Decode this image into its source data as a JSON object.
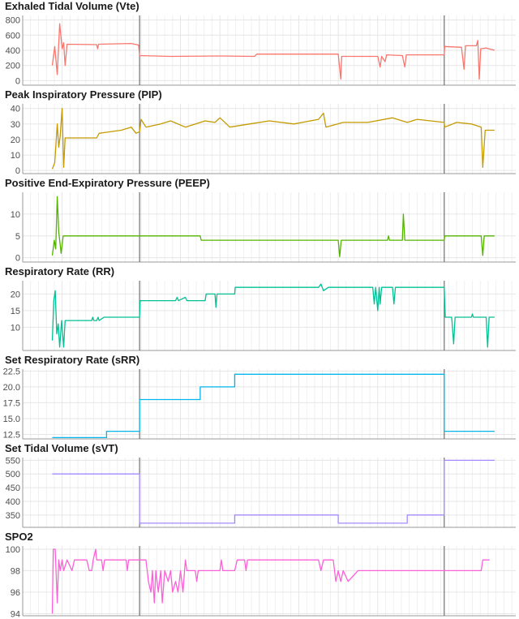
{
  "chart_data": {
    "type": "line",
    "x_range": [
      0,
      100
    ],
    "event_markers": [
      23.7,
      85.5
    ],
    "grid": true,
    "panels": [
      {
        "title": "Exhaled Tidal Volume (Vte)",
        "color": "#f8766d",
        "ylim": [
          -60,
          860
        ],
        "yticks": [
          0,
          200,
          400,
          600,
          800
        ],
        "ytick_labels": [
          "0",
          "200",
          "400",
          "600",
          "800"
        ],
        "points": [
          [
            6,
            200
          ],
          [
            6.5,
            450
          ],
          [
            7,
            80
          ],
          [
            7.5,
            750
          ],
          [
            8,
            420
          ],
          [
            8.3,
            500
          ],
          [
            8.6,
            200
          ],
          [
            9,
            480
          ],
          [
            15,
            475
          ],
          [
            15.2,
            420
          ],
          [
            15.4,
            480
          ],
          [
            22,
            490
          ],
          [
            23.5,
            470
          ],
          [
            23.7,
            330
          ],
          [
            30,
            320
          ],
          [
            40,
            325
          ],
          [
            47,
            320
          ],
          [
            47.5,
            350
          ],
          [
            64,
            350
          ],
          [
            64.5,
            20
          ],
          [
            64.7,
            320
          ],
          [
            72,
            320
          ],
          [
            72.5,
            180
          ],
          [
            72.8,
            320
          ],
          [
            73.5,
            250
          ],
          [
            73.8,
            340
          ],
          [
            77,
            330
          ],
          [
            77.5,
            180
          ],
          [
            77.8,
            340
          ],
          [
            85.5,
            340
          ],
          [
            85.6,
            450
          ],
          [
            89,
            440
          ],
          [
            89.5,
            150
          ],
          [
            89.8,
            460
          ],
          [
            92,
            460
          ],
          [
            92.3,
            530
          ],
          [
            92.6,
            20
          ],
          [
            92.9,
            420
          ],
          [
            94,
            430
          ],
          [
            95.7,
            400
          ]
        ]
      },
      {
        "title": "Peak Inspiratory Pressure (PIP)",
        "color": "#c49a00",
        "ylim": [
          -2,
          43
        ],
        "yticks": [
          0,
          10,
          20,
          30,
          40
        ],
        "ytick_labels": [
          "0",
          "10",
          "20",
          "30",
          "40"
        ],
        "points": [
          [
            6,
            1
          ],
          [
            6.5,
            5
          ],
          [
            7,
            30
          ],
          [
            7.3,
            15
          ],
          [
            7.6,
            22
          ],
          [
            8,
            40
          ],
          [
            8.3,
            2
          ],
          [
            8.6,
            21
          ],
          [
            15,
            21
          ],
          [
            15.5,
            24
          ],
          [
            20,
            26
          ],
          [
            22,
            28
          ],
          [
            23,
            24
          ],
          [
            23.7,
            25
          ],
          [
            24,
            33
          ],
          [
            25,
            28
          ],
          [
            28,
            30
          ],
          [
            30,
            32
          ],
          [
            33,
            28
          ],
          [
            37,
            32
          ],
          [
            39,
            31
          ],
          [
            40,
            34
          ],
          [
            42,
            28
          ],
          [
            46,
            30
          ],
          [
            50,
            32
          ],
          [
            55,
            30
          ],
          [
            60,
            33
          ],
          [
            61,
            37
          ],
          [
            61.5,
            28
          ],
          [
            65,
            31
          ],
          [
            70,
            31
          ],
          [
            75,
            34
          ],
          [
            78,
            31
          ],
          [
            80,
            33
          ],
          [
            85.5,
            31
          ],
          [
            85.6,
            28
          ],
          [
            88,
            31
          ],
          [
            91,
            30
          ],
          [
            93,
            28
          ],
          [
            93.3,
            2
          ],
          [
            93.8,
            26
          ],
          [
            95.7,
            26
          ]
        ]
      },
      {
        "title": "Positive End-Expiratory Pressure (PEEP)",
        "color": "#53b400",
        "ylim": [
          -1,
          15
        ],
        "yticks": [
          0,
          5,
          10
        ],
        "ytick_labels": [
          "0",
          "5",
          "10"
        ],
        "points": [
          [
            6,
            0.5
          ],
          [
            6.4,
            4
          ],
          [
            6.7,
            2
          ],
          [
            7,
            14
          ],
          [
            7.3,
            6
          ],
          [
            7.8,
            1
          ],
          [
            8.2,
            5
          ],
          [
            23.7,
            5
          ],
          [
            36,
            5
          ],
          [
            36.2,
            4
          ],
          [
            64,
            4
          ],
          [
            64.3,
            0.2
          ],
          [
            64.6,
            4
          ],
          [
            74,
            4
          ],
          [
            74.2,
            5
          ],
          [
            74.4,
            4
          ],
          [
            77,
            4
          ],
          [
            77.2,
            10
          ],
          [
            77.5,
            4
          ],
          [
            85.5,
            4
          ],
          [
            85.6,
            5
          ],
          [
            93,
            5
          ],
          [
            93.3,
            0.5
          ],
          [
            93.6,
            5
          ],
          [
            95.7,
            5
          ]
        ]
      },
      {
        "title": "Respiratory Rate (RR)",
        "color": "#00c094",
        "ylim": [
          3,
          24
        ],
        "yticks": [
          10,
          15,
          20
        ],
        "ytick_labels": [
          "10",
          "15",
          "20"
        ],
        "points": [
          [
            6,
            6
          ],
          [
            6.3,
            18
          ],
          [
            6.6,
            21
          ],
          [
            6.9,
            8
          ],
          [
            7.2,
            11
          ],
          [
            7.5,
            4
          ],
          [
            7.9,
            12
          ],
          [
            8.3,
            4
          ],
          [
            8.6,
            12
          ],
          [
            14,
            12
          ],
          [
            14.2,
            13
          ],
          [
            14.4,
            12
          ],
          [
            15,
            12
          ],
          [
            15.3,
            13
          ],
          [
            15.5,
            12
          ],
          [
            16.5,
            13
          ],
          [
            23.7,
            13
          ],
          [
            23.8,
            18
          ],
          [
            31,
            18
          ],
          [
            31.3,
            19
          ],
          [
            31.6,
            18
          ],
          [
            33,
            19
          ],
          [
            33.3,
            18
          ],
          [
            37,
            18
          ],
          [
            37.2,
            20
          ],
          [
            39,
            20
          ],
          [
            39.2,
            16
          ],
          [
            39.4,
            20
          ],
          [
            43,
            20
          ],
          [
            43.1,
            22
          ],
          [
            60,
            22
          ],
          [
            60.5,
            23
          ],
          [
            61,
            21
          ],
          [
            62,
            22
          ],
          [
            71,
            22
          ],
          [
            71.3,
            17
          ],
          [
            71.6,
            22
          ],
          [
            72,
            15
          ],
          [
            72.3,
            22
          ],
          [
            72.5,
            17
          ],
          [
            72.8,
            22
          ],
          [
            75,
            22
          ],
          [
            75.3,
            17
          ],
          [
            75.6,
            22
          ],
          [
            85.5,
            22
          ],
          [
            85.7,
            13
          ],
          [
            87,
            13
          ],
          [
            87.4,
            5
          ],
          [
            87.7,
            13
          ],
          [
            91,
            13
          ],
          [
            91.2,
            14
          ],
          [
            91.4,
            13
          ],
          [
            94,
            13
          ],
          [
            94.3,
            4
          ],
          [
            94.6,
            13
          ],
          [
            95.7,
            13
          ]
        ]
      },
      {
        "title": "Set Respiratory Rate (sRR)",
        "color": "#00b6eb",
        "ylim": [
          11.8,
          22.8
        ],
        "yticks": [
          12.5,
          15,
          17.5,
          20,
          22.5
        ],
        "ytick_labels": [
          "12.5",
          "15.0",
          "17.5",
          "20.0",
          "22.5"
        ],
        "points": [
          [
            6,
            12
          ],
          [
            17,
            12
          ],
          [
            17,
            13
          ],
          [
            23.7,
            13
          ],
          [
            23.7,
            18
          ],
          [
            36,
            18
          ],
          [
            36,
            20
          ],
          [
            43,
            20
          ],
          [
            43,
            22
          ],
          [
            85.5,
            22
          ],
          [
            85.5,
            13
          ],
          [
            95.7,
            13
          ]
        ]
      },
      {
        "title": "Set Tidal Volume (sVT)",
        "color": "#a58aff",
        "ylim": [
          305,
          560
        ],
        "yticks": [
          350,
          400,
          450,
          500,
          550
        ],
        "ytick_labels": [
          "350",
          "400",
          "450",
          "500",
          "550"
        ],
        "points": [
          [
            6,
            500
          ],
          [
            23.7,
            500
          ],
          [
            23.7,
            320
          ],
          [
            43,
            320
          ],
          [
            43,
            350
          ],
          [
            64,
            350
          ],
          [
            64,
            320
          ],
          [
            78,
            320
          ],
          [
            78,
            350
          ],
          [
            85.5,
            350
          ],
          [
            85.5,
            550
          ],
          [
            95.7,
            550
          ]
        ]
      },
      {
        "title": "SPO2",
        "color": "#fb61d7",
        "ylim": [
          93.8,
          100.3
        ],
        "yticks": [
          94,
          96,
          98,
          100
        ],
        "ytick_labels": [
          "94",
          "96",
          "98",
          "100"
        ],
        "points": [
          [
            6,
            94
          ],
          [
            6.2,
            100
          ],
          [
            6.6,
            100
          ],
          [
            7,
            95
          ],
          [
            7.3,
            99
          ],
          [
            7.6,
            98
          ],
          [
            8,
            99
          ],
          [
            8.3,
            98
          ],
          [
            9,
            99
          ],
          [
            10,
            98
          ],
          [
            10.5,
            99
          ],
          [
            13,
            99
          ],
          [
            13.5,
            98
          ],
          [
            14,
            98
          ],
          [
            14.3,
            99
          ],
          [
            14.8,
            100
          ],
          [
            15,
            99
          ],
          [
            16,
            99
          ],
          [
            16.3,
            98
          ],
          [
            16.6,
            99
          ],
          [
            21,
            99
          ],
          [
            21.2,
            98
          ],
          [
            21.5,
            99
          ],
          [
            23.7,
            99
          ],
          [
            25,
            99
          ],
          [
            25.5,
            97
          ],
          [
            26,
            96
          ],
          [
            26.3,
            98
          ],
          [
            26.7,
            95
          ],
          [
            27,
            98
          ],
          [
            27.5,
            96
          ],
          [
            28,
            98
          ],
          [
            28.3,
            95
          ],
          [
            28.8,
            98
          ],
          [
            29.5,
            97
          ],
          [
            30,
            98
          ],
          [
            30.4,
            96
          ],
          [
            31,
            97
          ],
          [
            31.5,
            96
          ],
          [
            32,
            98
          ],
          [
            32.5,
            96
          ],
          [
            33,
            99
          ],
          [
            33.3,
            98
          ],
          [
            35,
            98
          ],
          [
            35.3,
            97
          ],
          [
            35.6,
            98
          ],
          [
            40,
            98
          ],
          [
            40.3,
            99
          ],
          [
            40.6,
            98
          ],
          [
            43,
            98
          ],
          [
            43.5,
            99
          ],
          [
            45,
            99
          ],
          [
            45.3,
            98
          ],
          [
            45.6,
            99
          ],
          [
            60,
            99
          ],
          [
            60.5,
            98
          ],
          [
            61,
            99
          ],
          [
            63,
            99
          ],
          [
            63.5,
            97
          ],
          [
            64,
            98
          ],
          [
            64.5,
            97
          ],
          [
            65,
            98
          ],
          [
            66,
            97
          ],
          [
            67,
            97.5
          ],
          [
            68,
            98
          ],
          [
            85.5,
            98
          ],
          [
            93,
            98
          ],
          [
            93.3,
            99
          ],
          [
            94.7,
            99
          ]
        ]
      }
    ]
  }
}
